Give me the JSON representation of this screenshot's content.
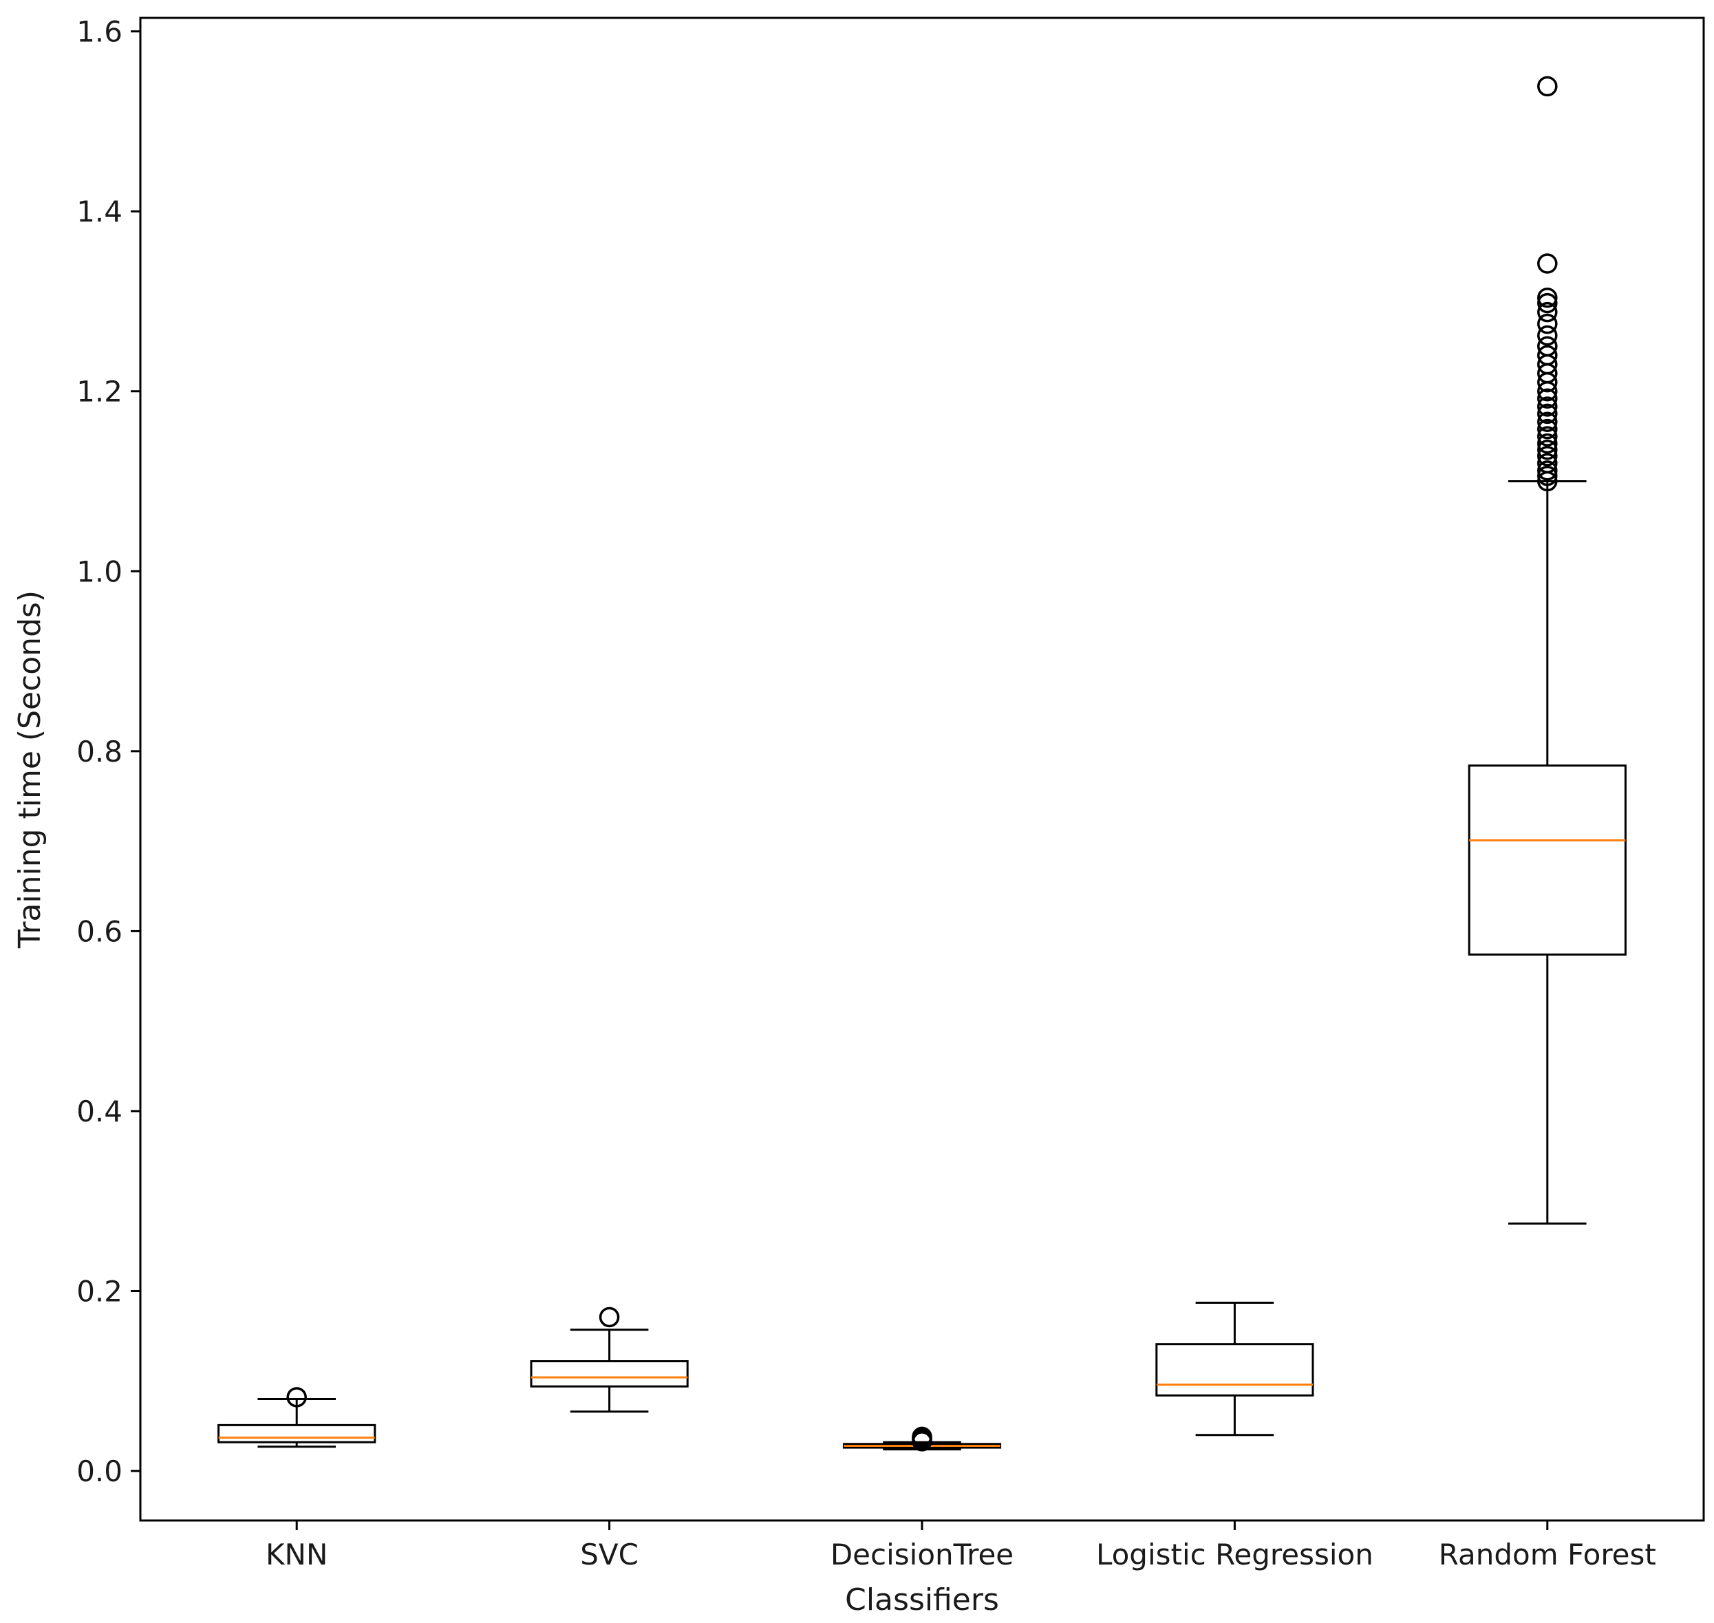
{
  "chart_data": {
    "type": "boxplot",
    "title": "",
    "xlabel": "Classifiers",
    "ylabel": "Training time (Seconds)",
    "ylim": [
      -0.055,
      1.615
    ],
    "yticks": [
      0.0,
      0.2,
      0.4,
      0.6,
      0.8,
      1.0,
      1.2,
      1.4,
      1.6
    ],
    "ytick_labels": [
      "0.0",
      "0.2",
      "0.4",
      "0.6",
      "0.8",
      "1.0",
      "1.2",
      "1.4",
      "1.6"
    ],
    "categories": [
      "KNN",
      "SVC",
      "DecisionTree",
      "Logistic Regression",
      "Random Forest"
    ],
    "boxes": [
      {
        "name": "KNN",
        "whisker_low": 0.027,
        "q1": 0.032,
        "median": 0.037,
        "q3": 0.051,
        "whisker_high": 0.08,
        "outliers": [
          0.082
        ]
      },
      {
        "name": "SVC",
        "whisker_low": 0.066,
        "q1": 0.094,
        "median": 0.104,
        "q3": 0.122,
        "whisker_high": 0.157,
        "outliers": [
          0.171
        ]
      },
      {
        "name": "DecisionTree",
        "whisker_low": 0.024,
        "q1": 0.026,
        "median": 0.028,
        "q3": 0.03,
        "whisker_high": 0.032,
        "outliers": [
          0.033,
          0.035,
          0.036,
          0.037,
          0.038
        ]
      },
      {
        "name": "Logistic Regression",
        "whisker_low": 0.04,
        "q1": 0.084,
        "median": 0.096,
        "q3": 0.141,
        "whisker_high": 0.187,
        "outliers": []
      },
      {
        "name": "Random Forest",
        "whisker_low": 0.275,
        "q1": 0.574,
        "median": 0.701,
        "q3": 0.784,
        "whisker_high": 1.1,
        "outliers": [
          1.1,
          1.106,
          1.112,
          1.12,
          1.128,
          1.135,
          1.142,
          1.15,
          1.158,
          1.166,
          1.175,
          1.183,
          1.192,
          1.2,
          1.21,
          1.22,
          1.23,
          1.24,
          1.25,
          1.262,
          1.275,
          1.288,
          1.298,
          1.304,
          1.342,
          1.539
        ]
      }
    ],
    "colors": {
      "box": "#000000",
      "median": "#ff7f0e",
      "background": "#ffffff"
    },
    "grid": false,
    "legend": "none"
  }
}
